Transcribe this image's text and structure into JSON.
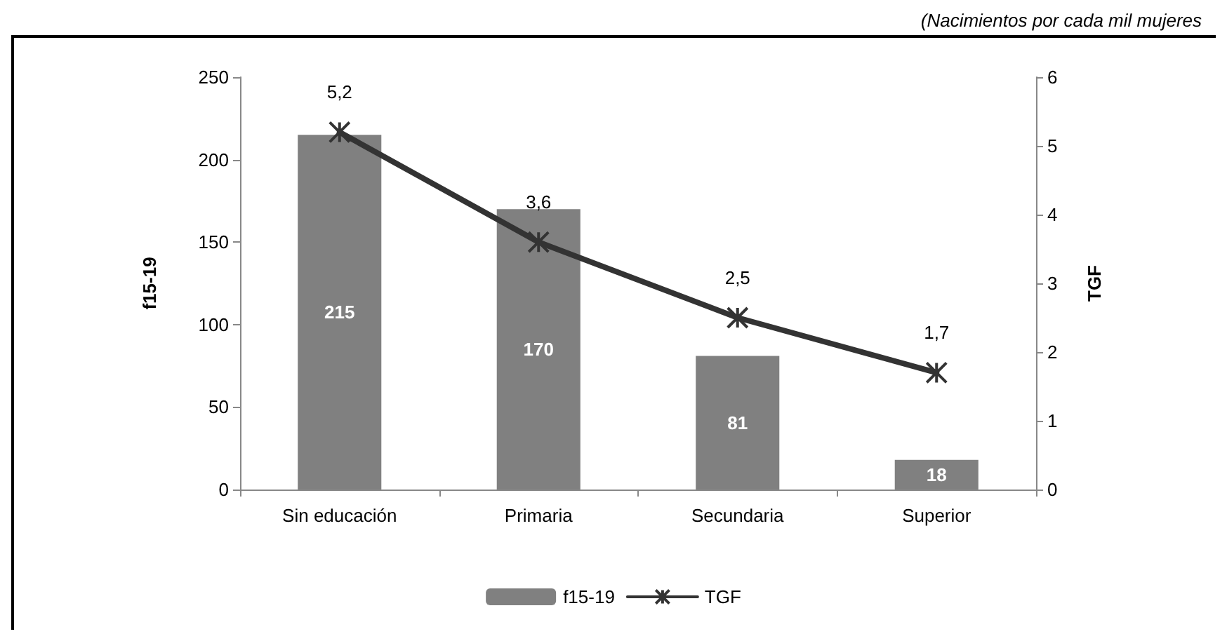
{
  "chart_data": {
    "type": "bar",
    "categories": [
      "Sin educación",
      "Primaria",
      "Secundaria",
      "Superior"
    ],
    "series": [
      {
        "name": "f15-19",
        "color": "#808080",
        "values": [
          215,
          170,
          81,
          18
        ],
        "value_labels": [
          "215",
          "170",
          "81",
          "18"
        ]
      },
      {
        "name": "TGF",
        "type": "line",
        "axis": "y2",
        "color": "#333333",
        "values": [
          5.2,
          3.6,
          2.5,
          1.7
        ],
        "value_labels": [
          "5,2",
          "3,6",
          "2,5",
          "1,7"
        ]
      }
    ],
    "ylabel": "f15-19",
    "y2label": "TGF",
    "ylim": [
      0,
      250
    ],
    "yticks": [
      0,
      50,
      100,
      150,
      200,
      250
    ],
    "y2lim": [
      0,
      6
    ],
    "y2ticks": [
      0,
      1,
      2,
      3,
      4,
      5,
      6
    ],
    "annotations": [
      "(Nacimientos por cada mil mujeres"
    ],
    "legend": "bottom",
    "grid": false,
    "marker": "cross",
    "line_style": "solid"
  }
}
